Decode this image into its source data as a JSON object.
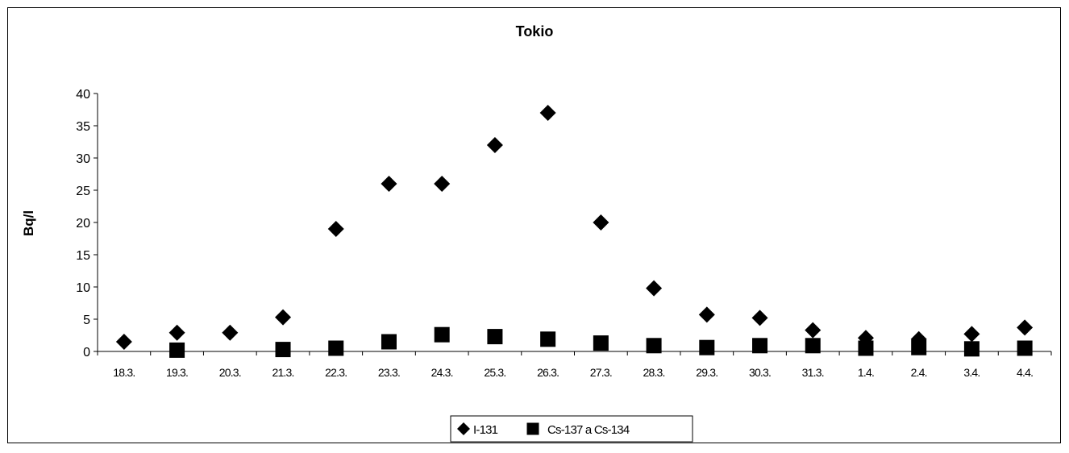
{
  "chart_data": {
    "type": "scatter",
    "title": "Tokio",
    "xlabel": "",
    "ylabel": "Bq/l",
    "ylim": [
      0,
      40
    ],
    "yticks": [
      0,
      5,
      10,
      15,
      20,
      25,
      30,
      35,
      40
    ],
    "categories": [
      "18.3.",
      "19.3.",
      "20.3.",
      "21.3.",
      "22.3.",
      "23.3.",
      "24.3.",
      "25.3.",
      "26.3.",
      "27.3.",
      "28.3.",
      "29.3.",
      "30.3.",
      "31.3.",
      "1.4.",
      "2.4.",
      "3.4.",
      "4.4."
    ],
    "series": [
      {
        "name": "I-131",
        "marker": "diamond",
        "color": "#000000",
        "values": [
          1.5,
          2.9,
          2.9,
          5.3,
          19,
          26,
          26,
          32,
          37,
          20,
          9.8,
          5.7,
          5.2,
          3.3,
          2.1,
          1.9,
          2.7,
          3.7
        ]
      },
      {
        "name": "Cs-137 a Cs-134",
        "marker": "square",
        "color": "#000000",
        "values": [
          null,
          0.2,
          null,
          0.3,
          0.5,
          1.5,
          2.6,
          2.3,
          1.9,
          1.3,
          0.9,
          0.6,
          0.9,
          0.9,
          0.5,
          0.6,
          0.4,
          0.5
        ]
      }
    ],
    "grid": false,
    "legend_position": "bottom"
  }
}
